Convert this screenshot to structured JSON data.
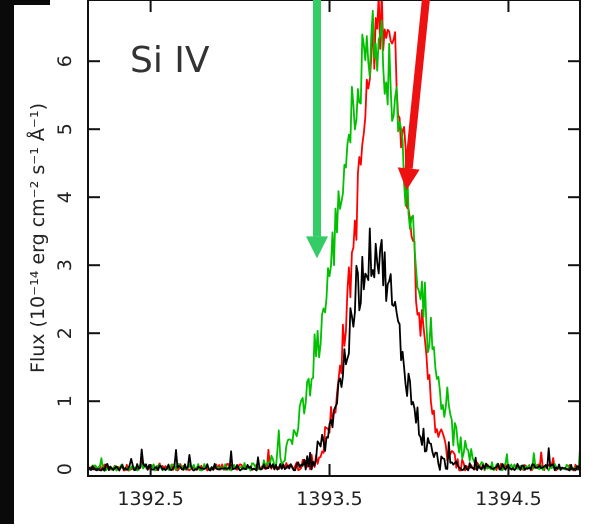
{
  "chart_data": {
    "type": "line",
    "title": "Si IV",
    "xlabel": "",
    "ylabel": "Flux (10⁻¹⁴ erg cm⁻² s⁻¹ Å⁻¹)",
    "xlim": [
      1392.15,
      1394.9
    ],
    "ylim": [
      -0.1,
      6.9
    ],
    "xticks": [
      {
        "value": 1392.5,
        "label": "1392.5"
      },
      {
        "value": 1393.5,
        "label": "1393.5"
      },
      {
        "value": 1394.5,
        "label": "1394.5"
      }
    ],
    "yticks": [
      {
        "value": 0,
        "label": "0"
      },
      {
        "value": 1,
        "label": "1"
      },
      {
        "value": 2,
        "label": "2"
      },
      {
        "value": 3,
        "label": "3"
      },
      {
        "value": 4,
        "label": "4"
      },
      {
        "value": 5,
        "label": "5"
      },
      {
        "value": 6,
        "label": "6"
      }
    ],
    "grid": false,
    "series": [
      {
        "color": "#ff0000",
        "profile": {
          "center": 1393.8,
          "peak": 6.7,
          "width": 0.14
        },
        "x": [
          1392.2,
          1392.4,
          1392.6,
          1392.8,
          1393.0,
          1393.2,
          1393.4,
          1393.5,
          1393.55,
          1393.6,
          1393.65,
          1393.7,
          1393.75,
          1393.8,
          1393.85,
          1393.9,
          1393.95,
          1394.0,
          1394.1,
          1394.2,
          1394.3,
          1394.45,
          1394.6,
          1394.9
        ],
        "y": [
          0.05,
          0.06,
          0.07,
          0.07,
          0.1,
          0.12,
          0.2,
          0.8,
          1.6,
          2.8,
          4.2,
          5.6,
          6.5,
          6.7,
          5.6,
          4.4,
          3.8,
          3.0,
          2.0,
          1.1,
          0.7,
          0.4,
          0.15,
          0.05
        ]
      },
      {
        "color": "#00c000",
        "profile": {
          "center": 1393.75,
          "peak": 6.3,
          "width": 0.2
        },
        "x": [
          1392.2,
          1392.4,
          1392.6,
          1392.8,
          1393.0,
          1393.15,
          1393.3,
          1393.4,
          1393.45,
          1393.5,
          1393.55,
          1393.6,
          1393.65,
          1393.7,
          1393.75,
          1393.8,
          1393.9,
          1394.0,
          1394.1,
          1394.2,
          1394.35,
          1394.5,
          1394.7,
          1394.9
        ],
        "y": [
          0.05,
          0.06,
          0.07,
          0.1,
          0.2,
          0.45,
          0.9,
          1.8,
          2.8,
          3.6,
          4.3,
          4.8,
          5.3,
          5.8,
          6.3,
          5.9,
          4.2,
          2.6,
          1.4,
          0.6,
          0.3,
          0.1,
          0.06,
          0.05
        ]
      },
      {
        "color": "#000000",
        "profile": {
          "center": 1393.75,
          "peak": 3.2,
          "width": 0.14
        },
        "x": [
          1393.2,
          1393.3,
          1393.4,
          1393.5,
          1393.55,
          1393.6,
          1393.65,
          1393.7,
          1393.75,
          1393.8,
          1393.85,
          1393.9,
          1393.95,
          1394.0,
          1394.1,
          1394.2,
          1394.3
        ],
        "y": [
          0.05,
          0.12,
          0.3,
          0.5,
          0.9,
          1.6,
          2.4,
          2.9,
          3.2,
          2.7,
          2.0,
          1.3,
          0.8,
          0.5,
          0.3,
          0.15,
          0.05
        ]
      }
    ],
    "annotations": [
      {
        "type": "arrow",
        "color": "#33cc66",
        "from": [
          1393.43,
          7.2
        ],
        "to": [
          1393.43,
          3.1
        ]
      },
      {
        "type": "arrow",
        "color": "#ee1111",
        "from": [
          1394.05,
          7.2
        ],
        "to": [
          1393.93,
          4.1
        ]
      }
    ]
  }
}
